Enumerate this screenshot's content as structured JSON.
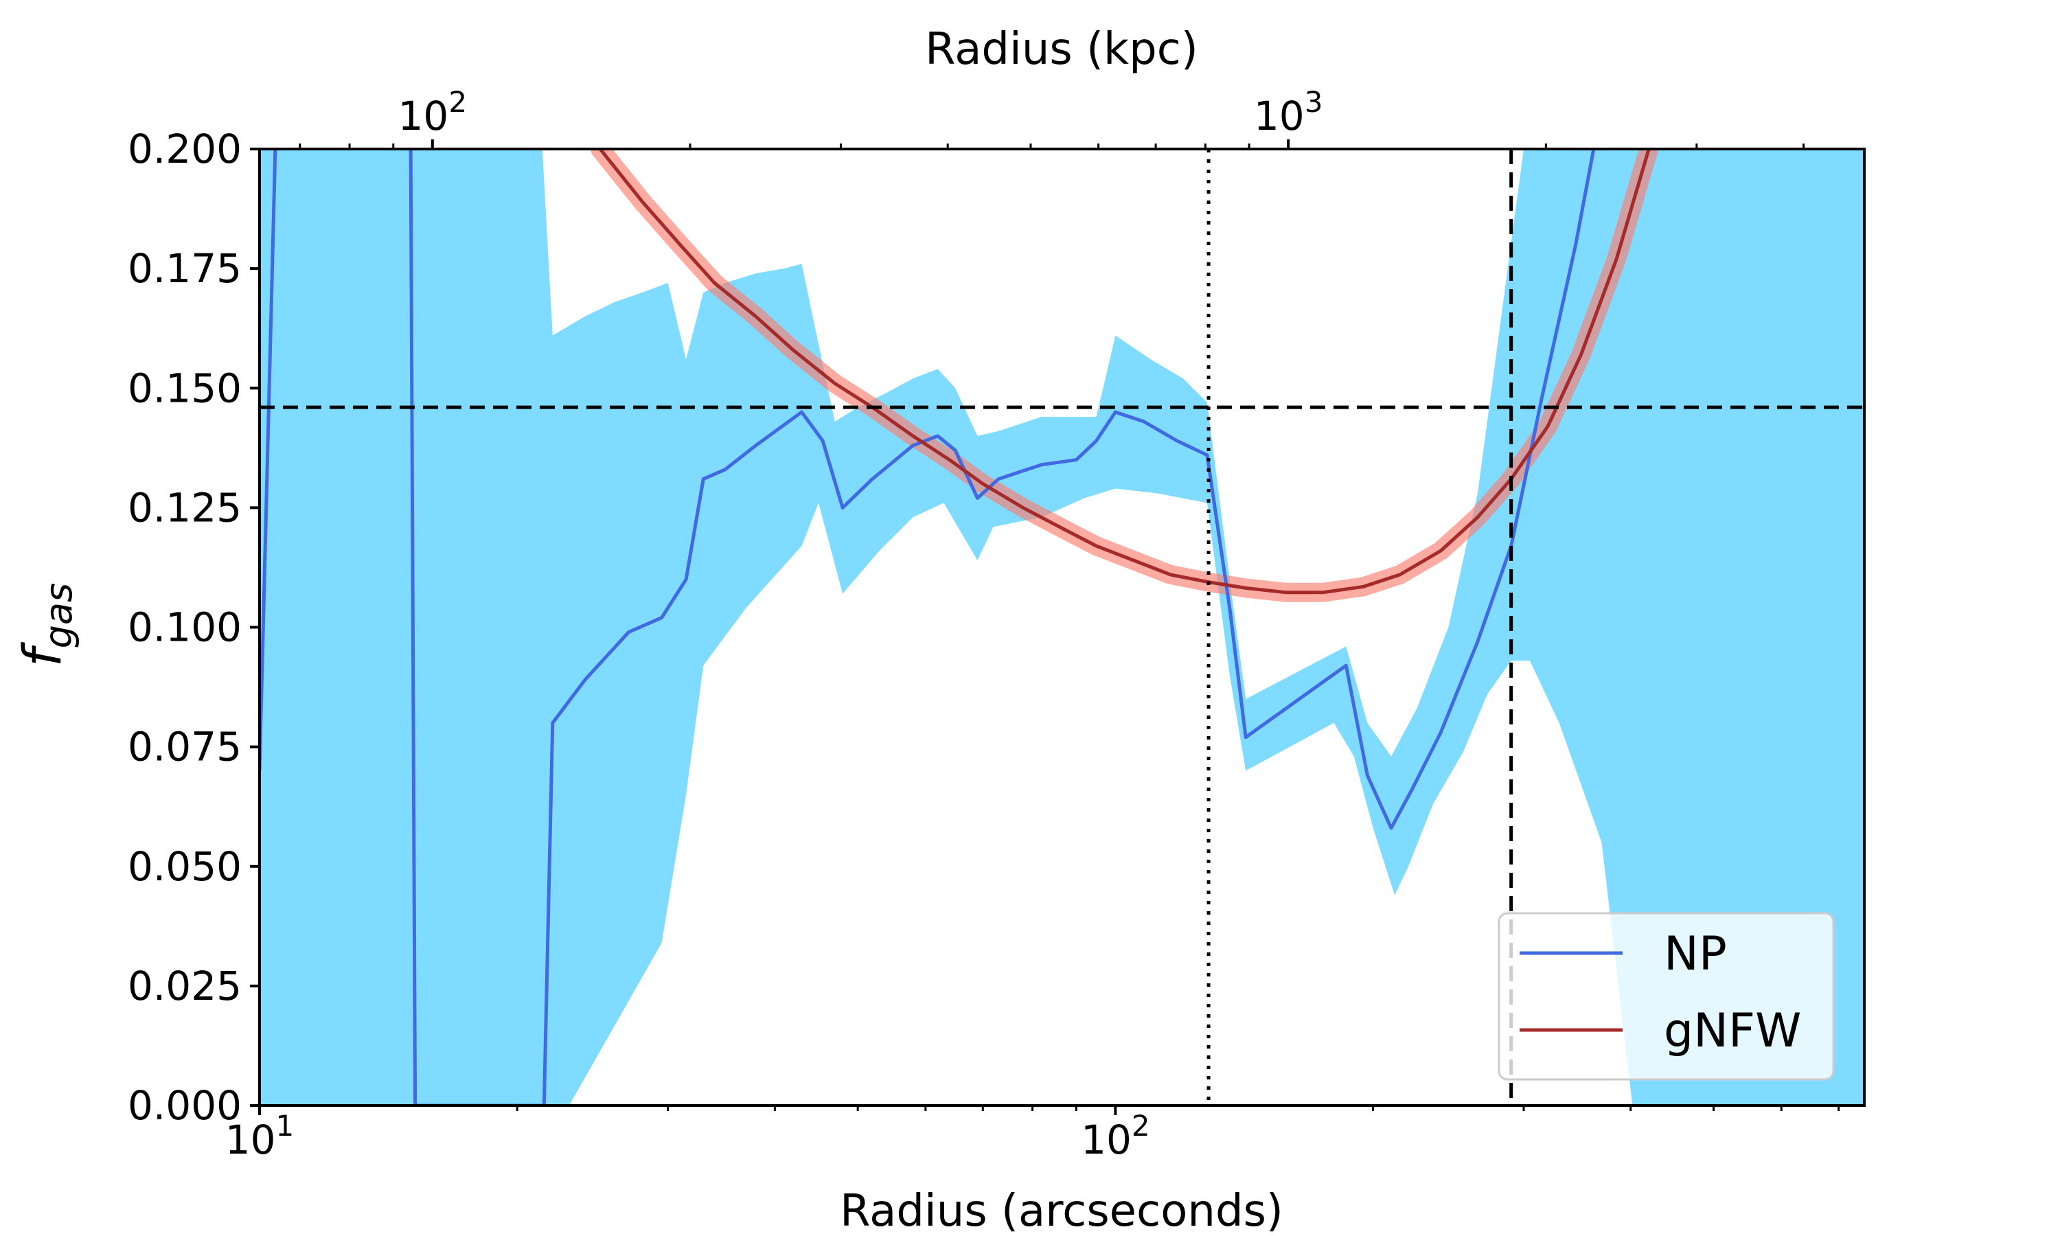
{
  "chart_data": {
    "type": "line",
    "xlabel": "Radius (arcseconds)",
    "x2label": "Radius (kpc)",
    "ylabel": "f",
    "ylabel_sub": "gas",
    "xscale": "log",
    "xlim": [
      10,
      750
    ],
    "x2scale": "log",
    "x2_per_x": 6.28,
    "x2_ticks": [
      {
        "value": 100,
        "base": "10",
        "exp": "2"
      },
      {
        "value": 1000,
        "base": "10",
        "exp": "3"
      }
    ],
    "x_ticks": [
      {
        "value": 10,
        "base": "10",
        "exp": "1"
      },
      {
        "value": 100,
        "base": "10",
        "exp": "2"
      }
    ],
    "ylim": [
      0,
      0.2
    ],
    "y_ticks": [
      "0.000",
      "0.025",
      "0.050",
      "0.075",
      "0.100",
      "0.125",
      "0.150",
      "0.175",
      "0.200"
    ],
    "hline": 0.146,
    "vline_dotted": 128.5,
    "vline_dashed": 290,
    "legend": {
      "position": "lower-right",
      "entries": [
        {
          "label": "NP",
          "color": "#4169E1"
        },
        {
          "label": "gNFW",
          "color": "#A52A2A"
        }
      ]
    },
    "series": [
      {
        "name": "NP",
        "color": "#4169E1",
        "band_color": "#7FDBFF",
        "points": [
          [
            10.0,
            0.07
          ],
          [
            10.5,
            0.22
          ],
          [
            15.0,
            0.22
          ],
          [
            15.2,
            0.0
          ],
          [
            21.5,
            0.0
          ],
          [
            22.0,
            0.08
          ],
          [
            24.0,
            0.089
          ],
          [
            27.0,
            0.099
          ],
          [
            29.5,
            0.102
          ],
          [
            31.5,
            0.11
          ],
          [
            33.0,
            0.131
          ],
          [
            35.0,
            0.133
          ],
          [
            38.0,
            0.138
          ],
          [
            43.0,
            0.145
          ],
          [
            45.5,
            0.139
          ],
          [
            48.0,
            0.125
          ],
          [
            52.0,
            0.131
          ],
          [
            58.0,
            0.138
          ],
          [
            62.0,
            0.14
          ],
          [
            65.0,
            0.137
          ],
          [
            69.0,
            0.127
          ],
          [
            73.0,
            0.131
          ],
          [
            82.0,
            0.134
          ],
          [
            90.0,
            0.135
          ],
          [
            95.0,
            0.139
          ],
          [
            100.0,
            0.145
          ],
          [
            108.0,
            0.143
          ],
          [
            118.0,
            0.139
          ],
          [
            128.0,
            0.136
          ],
          [
            136.0,
            0.104
          ],
          [
            142.0,
            0.077
          ],
          [
            186.0,
            0.092
          ],
          [
            197.0,
            0.069
          ],
          [
            210.0,
            0.058
          ],
          [
            222.0,
            0.066
          ],
          [
            240.0,
            0.078
          ],
          [
            265.0,
            0.097
          ],
          [
            290.0,
            0.117
          ],
          [
            315.0,
            0.148
          ],
          [
            345.0,
            0.18
          ],
          [
            380.0,
            0.22
          ]
        ],
        "band_upper": [
          [
            10.0,
            0.2
          ],
          [
            21.4,
            0.2
          ],
          [
            22.0,
            0.161
          ],
          [
            24.0,
            0.165
          ],
          [
            26.0,
            0.168
          ],
          [
            28.0,
            0.17
          ],
          [
            30.0,
            0.172
          ],
          [
            31.5,
            0.156
          ],
          [
            33.0,
            0.17
          ],
          [
            35.0,
            0.172
          ],
          [
            38.0,
            0.174
          ],
          [
            41.0,
            0.175
          ],
          [
            43.0,
            0.176
          ],
          [
            47.0,
            0.143
          ],
          [
            50.0,
            0.146
          ],
          [
            54.0,
            0.149
          ],
          [
            58.0,
            0.152
          ],
          [
            62.0,
            0.154
          ],
          [
            65.0,
            0.15
          ],
          [
            69.0,
            0.14
          ],
          [
            73.0,
            0.141
          ],
          [
            82.0,
            0.144
          ],
          [
            90.0,
            0.144
          ],
          [
            95.0,
            0.144
          ],
          [
            100.0,
            0.161
          ],
          [
            110.0,
            0.156
          ],
          [
            120.0,
            0.152
          ],
          [
            128.0,
            0.147
          ],
          [
            136.0,
            0.11
          ],
          [
            142.0,
            0.085
          ],
          [
            186.0,
            0.096
          ],
          [
            197.0,
            0.08
          ],
          [
            210.0,
            0.073
          ],
          [
            225.0,
            0.083
          ],
          [
            245.0,
            0.1
          ],
          [
            265.0,
            0.128
          ],
          [
            280.0,
            0.16
          ],
          [
            300.0,
            0.2
          ],
          [
            750.0,
            0.2
          ]
        ],
        "band_lower": [
          [
            750.0,
            0.0
          ],
          [
            402.0,
            0.0
          ],
          [
            370.0,
            0.055
          ],
          [
            330.0,
            0.08
          ],
          [
            305.0,
            0.093
          ],
          [
            290.0,
            0.093
          ],
          [
            272.0,
            0.086
          ],
          [
            255.0,
            0.074
          ],
          [
            235.0,
            0.063
          ],
          [
            220.0,
            0.05
          ],
          [
            212.0,
            0.044
          ],
          [
            200.0,
            0.058
          ],
          [
            190.0,
            0.073
          ],
          [
            180.0,
            0.08
          ],
          [
            142.0,
            0.07
          ],
          [
            136.0,
            0.09
          ],
          [
            128.0,
            0.126
          ],
          [
            112.0,
            0.128
          ],
          [
            100.0,
            0.129
          ],
          [
            92.0,
            0.127
          ],
          [
            82.0,
            0.123
          ],
          [
            72.0,
            0.121
          ],
          [
            69.0,
            0.114
          ],
          [
            63.0,
            0.126
          ],
          [
            58.0,
            0.123
          ],
          [
            53.0,
            0.116
          ],
          [
            48.0,
            0.107
          ],
          [
            45.0,
            0.126
          ],
          [
            43.0,
            0.117
          ],
          [
            37.0,
            0.104
          ],
          [
            33.0,
            0.092
          ],
          [
            31.5,
            0.065
          ],
          [
            29.5,
            0.034
          ],
          [
            23.0,
            0.0
          ],
          [
            10.0,
            0.0
          ]
        ]
      },
      {
        "name": "gNFW",
        "color": "#A52A2A",
        "band_color": "#FA8072",
        "points": [
          [
            25.0,
            0.2
          ],
          [
            28.0,
            0.189
          ],
          [
            31.0,
            0.18
          ],
          [
            34.0,
            0.172
          ],
          [
            38.0,
            0.165
          ],
          [
            42.0,
            0.158
          ],
          [
            47.0,
            0.151
          ],
          [
            52.0,
            0.146
          ],
          [
            58.0,
            0.14
          ],
          [
            64.0,
            0.135
          ],
          [
            70.0,
            0.13
          ],
          [
            78.0,
            0.125
          ],
          [
            86.0,
            0.121
          ],
          [
            95.0,
            0.117
          ],
          [
            105.0,
            0.114
          ],
          [
            116.0,
            0.111
          ],
          [
            128.0,
            0.1095
          ],
          [
            142.0,
            0.1082
          ],
          [
            158.0,
            0.1073
          ],
          [
            175.0,
            0.1073
          ],
          [
            195.0,
            0.1085
          ],
          [
            215.0,
            0.111
          ],
          [
            240.0,
            0.116
          ],
          [
            265.0,
            0.123
          ],
          [
            290.0,
            0.131
          ],
          [
            320.0,
            0.142
          ],
          [
            350.0,
            0.157
          ],
          [
            385.0,
            0.177
          ],
          [
            420.0,
            0.2
          ]
        ]
      }
    ]
  }
}
